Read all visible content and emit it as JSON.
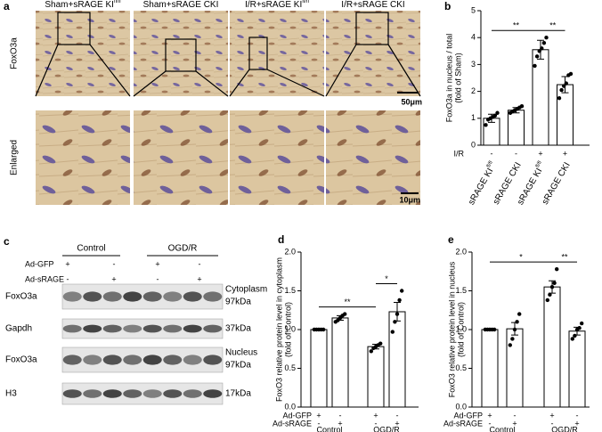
{
  "panel_a": {
    "label": "a",
    "columns": [
      {
        "text": "Sham+sRAGE KI",
        "sup": "fl/fl"
      },
      {
        "text": "Sham+sRAGE CKI"
      },
      {
        "text": "I/R+sRAGE KI",
        "sup": "fl/fl"
      },
      {
        "text": "I/R+sRAGE CKI"
      }
    ],
    "rows": [
      "FoxO3a",
      "Enlarged"
    ],
    "scale_bars": [
      "50μm",
      "10μm"
    ]
  },
  "panel_c": {
    "label": "c",
    "groups": [
      "Control",
      "OGD/R"
    ],
    "conditions": [
      {
        "name": "Ad-GFP",
        "values": [
          "+",
          "-",
          "+",
          "-"
        ]
      },
      {
        "name": "Ad-sRAGE",
        "values": [
          "-",
          "+",
          "-",
          "+"
        ]
      }
    ],
    "rows": [
      {
        "protein": "FoxO3a",
        "fraction": "Cytoplasm",
        "kda": "97kDa"
      },
      {
        "protein": "Gapdh",
        "kda": "37kDa"
      },
      {
        "protein": "FoxO3a",
        "fraction": "Nucleus",
        "kda": "97kDa"
      },
      {
        "protein": "H3",
        "kda": "17kDa"
      }
    ]
  },
  "chart_data": [
    {
      "type": "bar",
      "label": "b",
      "ylabel": [
        "FoxO3a in nucleus / total",
        "(fold of Sham)"
      ],
      "categories": [
        {
          "text": "sRAGE KI",
          "sup": "fl/fl"
        },
        {
          "text": "sRAGE CKI"
        },
        {
          "text": "sRAGE KI",
          "sup": "fl/fl"
        },
        {
          "text": "sRAGE CKI"
        }
      ],
      "conditions": [
        {
          "name": "I/R",
          "values": [
            "-",
            "-",
            "+",
            "+"
          ]
        }
      ],
      "series": [
        {
          "color": "#ffffff",
          "values": [
            1.0,
            1.3,
            3.55,
            2.25
          ],
          "errors": [
            0.15,
            0.1,
            0.35,
            0.3
          ],
          "points": [
            [
              0.75,
              0.95,
              1.0,
              1.05,
              1.1,
              1.2
            ],
            [
              1.2,
              1.25,
              1.3,
              1.35,
              1.4,
              1.45
            ],
            [
              2.95,
              3.3,
              3.5,
              3.6,
              3.8,
              4.0
            ],
            [
              1.75,
              2.05,
              2.2,
              2.3,
              2.6,
              2.65
            ]
          ]
        }
      ],
      "significance": [
        {
          "from": 0,
          "to": 2,
          "label": "**"
        },
        {
          "from": 2,
          "to": 3,
          "label": "**"
        }
      ],
      "ylim": [
        0,
        5
      ],
      "yticks": [
        0,
        1,
        2,
        3,
        4,
        5
      ]
    },
    {
      "type": "bar",
      "label": "d",
      "ylabel": [
        "FoxO3 relative protein level in cytoplasm",
        "(fold of Control)"
      ],
      "groups": [
        "Control",
        "OGD/R"
      ],
      "conditions": [
        {
          "name": "Ad-GFP",
          "values": [
            "+",
            "-",
            "+",
            "-"
          ]
        },
        {
          "name": "Ad-sRAGE",
          "values": [
            "-",
            "+",
            "-",
            "+"
          ]
        }
      ],
      "series": [
        {
          "color": "#ffffff",
          "values": [
            1.0,
            1.15,
            0.78,
            1.23
          ],
          "errors": [
            0.005,
            0.03,
            0.03,
            0.12
          ],
          "points": [
            [
              1.0,
              1.0,
              1.0,
              1.0,
              1.0
            ],
            [
              1.1,
              1.12,
              1.15,
              1.18,
              1.2
            ],
            [
              0.72,
              0.76,
              0.78,
              0.8,
              0.82
            ],
            [
              0.97,
              1.1,
              1.2,
              1.38,
              1.5
            ]
          ]
        }
      ],
      "significance": [
        {
          "from": 0,
          "to": 2,
          "label": "**"
        },
        {
          "from": 2,
          "to": 3,
          "label": "*"
        }
      ],
      "ylim": [
        0,
        2
      ],
      "yticks": [
        {
          "value": 0,
          "label": "0.0"
        },
        {
          "value": 0.5,
          "label": "0.5"
        },
        {
          "value": 1,
          "label": "1.0"
        },
        {
          "value": 1.5,
          "label": "1.5"
        },
        {
          "value": 2,
          "label": "2.0"
        }
      ]
    },
    {
      "type": "bar",
      "label": "e",
      "ylabel": [
        "FoxO3 relative protein level in nucleus",
        "(fold of Control)"
      ],
      "groups": [
        "Control",
        "OGD/R"
      ],
      "conditions": [
        {
          "name": "Ad-GFP",
          "values": [
            "+",
            "-",
            "+",
            "-"
          ]
        },
        {
          "name": "Ad-sRAGE",
          "values": [
            "-",
            "+",
            "-",
            "+"
          ]
        }
      ],
      "series": [
        {
          "color": "#ffffff",
          "values": [
            1.0,
            1.01,
            1.55,
            0.98
          ],
          "errors": [
            0.005,
            0.08,
            0.08,
            0.05
          ],
          "points": [
            [
              1.0,
              1.0,
              1.0,
              1.0,
              1.0
            ],
            [
              0.8,
              0.88,
              1.0,
              1.1,
              1.2
            ],
            [
              1.38,
              1.45,
              1.55,
              1.6,
              1.78
            ],
            [
              0.88,
              0.92,
              1.0,
              1.02,
              1.08
            ]
          ]
        }
      ],
      "significance": [
        {
          "from": 0,
          "to": 2,
          "label": "*"
        },
        {
          "from": 2,
          "to": 3,
          "label": "**"
        }
      ],
      "ylim": [
        0,
        2
      ],
      "yticks": [
        {
          "value": 0,
          "label": "0.0"
        },
        {
          "value": 0.5,
          "label": "0.5"
        },
        {
          "value": 1,
          "label": "1.0"
        },
        {
          "value": 1.5,
          "label": "1.5"
        },
        {
          "value": 2,
          "label": "2.0"
        }
      ]
    }
  ]
}
